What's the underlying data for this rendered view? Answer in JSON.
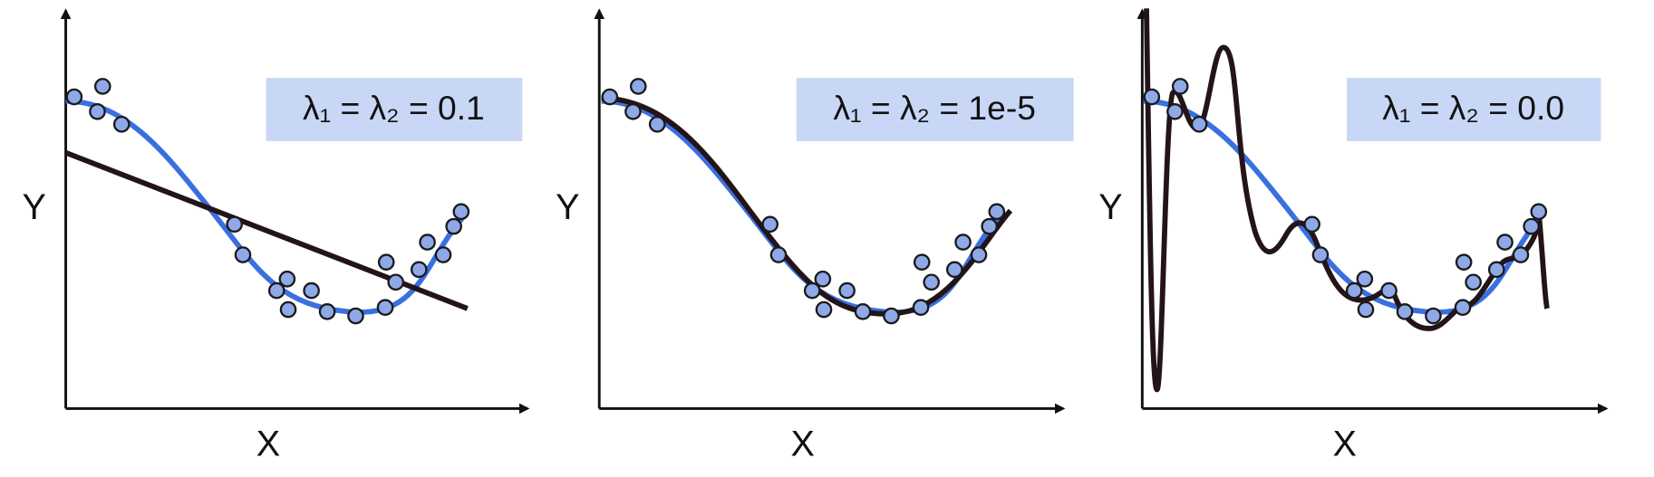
{
  "panels": [
    {
      "y_label": "Y",
      "x_label": "X",
      "legend": "λ₁ = λ₂ = 0.1"
    },
    {
      "y_label": "Y",
      "x_label": "X",
      "legend": "λ₁ = λ₂ = 1e-5"
    },
    {
      "y_label": "Y",
      "x_label": "X",
      "legend": "λ₁ = λ₂ = 0.0"
    }
  ]
}
